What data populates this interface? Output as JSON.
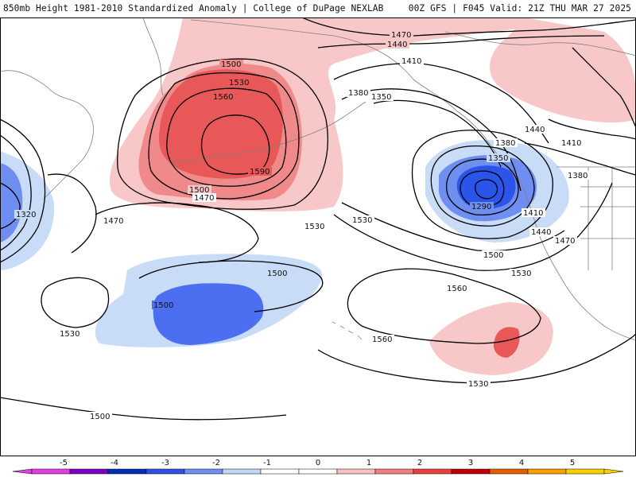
{
  "header": {
    "title_left": "850mb Height 1981-2010 Standardized Anomaly | College of DuPage NEXLAB",
    "title_right": "00Z GFS | F045 Valid: 21Z THU MAR 27 2025"
  },
  "contour_labels": {
    "c1470_top": "1470",
    "c1440_top": "1440",
    "c1410_top": "1410",
    "c1500_nw": "1500",
    "c1530_nw": "1530",
    "c1560_nw": "1560",
    "c1590_nw": "1590",
    "c1500_mid": "1500",
    "c1470_mid": "1470",
    "c1470_w": "1470",
    "c1320_w": "1320",
    "c1380_gulf": "1380",
    "c1350_gulf": "1350",
    "c1380_e": "1380",
    "c1350_e": "1350",
    "c1440_e": "1440",
    "c1410_ne": "1410",
    "c1380_far_e": "1380",
    "c1290_low": "1290",
    "c1410_coast": "1410",
    "c1440_coast": "1440",
    "c1470_coast": "1470",
    "c1530_a": "1530",
    "c1530_b": "1530",
    "c1500_coast": "1500",
    "c1530_c": "1530",
    "c1500_blue": "1500",
    "c1500_blue2": "1500",
    "c1530_w": "1530",
    "c1560_c": "1560",
    "c1560_s": "1560",
    "c1530_s": "1530",
    "c1500_sw": "1500"
  },
  "colorbar": {
    "ticks": [
      "-5",
      "-4",
      "-3",
      "-2",
      "-1",
      "0",
      "1",
      "2",
      "3",
      "4",
      "5"
    ],
    "colors": [
      "#e040e0",
      "#8000c0",
      "#0030b0",
      "#3050e0",
      "#7090f0",
      "#c0d8f8",
      "#ffffff",
      "#ffffff",
      "#f8c0c0",
      "#f08080",
      "#e84040",
      "#c00000",
      "#e06000",
      "#f8a000",
      "#f8d000"
    ]
  }
}
